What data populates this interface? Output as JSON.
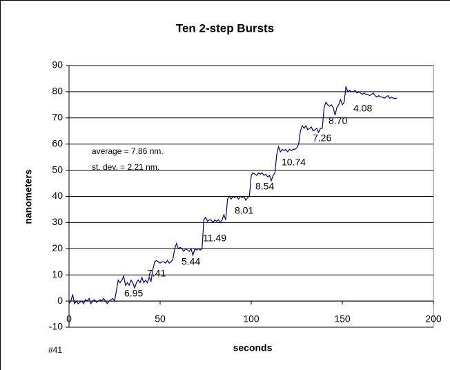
{
  "chart_data": {
    "type": "line",
    "title": "Ten 2-step Bursts",
    "x_label": "seconds",
    "y_label": "nanometers",
    "note": "#41",
    "annotations": [
      "average = 7.86 nm.",
      "st. dev. = 2.21 nm.",
      "6.95",
      "7.41",
      "5.44",
      "11.49",
      "8.01",
      "8.54",
      "10.74",
      "7.26",
      "8.70",
      "4.08"
    ],
    "xlim": [
      0,
      200
    ],
    "xticks": [
      0,
      50,
      100,
      150,
      200
    ],
    "ylim": [
      -10,
      90
    ],
    "yticks": [
      -10,
      0,
      10,
      20,
      30,
      40,
      50,
      60,
      70,
      80,
      90
    ],
    "grid": true,
    "series": [
      {
        "color": "#000080",
        "x": [
          0,
          1,
          2,
          3,
          4,
          5,
          6,
          7,
          8,
          9,
          10,
          11,
          12,
          13,
          14,
          15,
          16,
          17,
          18,
          19,
          20,
          21,
          22,
          23,
          24,
          25,
          26,
          27,
          28,
          29,
          30,
          31,
          32,
          33,
          34,
          35,
          36,
          37,
          38,
          39,
          40,
          41,
          42,
          43,
          44,
          45,
          46,
          47,
          48,
          49,
          50,
          51,
          52,
          53,
          54,
          55,
          56,
          57,
          58,
          59,
          60,
          61,
          62,
          63,
          64,
          65,
          66,
          67,
          68,
          69,
          70,
          71,
          72,
          73,
          74,
          75,
          76,
          77,
          78,
          79,
          80,
          81,
          82,
          83,
          84,
          85,
          86,
          87,
          88,
          89,
          90,
          91,
          92,
          93,
          94,
          95,
          96,
          97,
          98,
          99,
          100,
          101,
          102,
          103,
          104,
          105,
          106,
          107,
          108,
          109,
          110,
          111,
          112,
          113,
          114,
          115,
          116,
          117,
          118,
          119,
          120,
          121,
          122,
          123,
          124,
          125,
          126,
          127,
          128,
          129,
          130,
          131,
          132,
          133,
          134,
          135,
          136,
          137,
          138,
          139,
          140,
          141,
          142,
          143,
          144,
          145,
          146,
          147,
          148,
          149,
          150,
          151,
          152,
          153,
          154,
          155,
          156,
          157,
          158,
          159,
          160,
          161,
          162,
          163,
          164,
          165,
          166,
          167,
          168,
          169,
          170,
          171,
          172,
          173,
          174,
          175,
          176,
          177,
          178,
          179,
          180
        ],
        "values": [
          -1,
          0,
          2.5,
          -1,
          0,
          -1,
          -0.5,
          0,
          -1,
          0.5,
          0,
          1,
          -1,
          0,
          0.5,
          -0.5,
          0,
          0.5,
          0,
          1,
          0,
          -1,
          0,
          0.5,
          1,
          0,
          4,
          8,
          7,
          8,
          9.5,
          6,
          7,
          6,
          8,
          7,
          5,
          7,
          8,
          7,
          9,
          7,
          8,
          7,
          9,
          7.5,
          12,
          15,
          15.5,
          15,
          14.5,
          15,
          15,
          14.5,
          15.5,
          14.5,
          15,
          16,
          20,
          22,
          20,
          20.5,
          20,
          19,
          20,
          19.5,
          19,
          20,
          17.5,
          20,
          19.5,
          20,
          19.5,
          20,
          31,
          32,
          30.5,
          31,
          31,
          30,
          31,
          30.5,
          31,
          30,
          31,
          33,
          31,
          39,
          40,
          39,
          40,
          39.5,
          40,
          39,
          40,
          39.5,
          40,
          38.5,
          39.5,
          40,
          48,
          49,
          48.5,
          48,
          49,
          48.5,
          49,
          48,
          48.5,
          47.5,
          48,
          46,
          48,
          49,
          56,
          59,
          57,
          58,
          57.5,
          58,
          57,
          58,
          57.5,
          58,
          58,
          58.5,
          60,
          65,
          67,
          66,
          67,
          65.5,
          66,
          66.5,
          65,
          65.5,
          66,
          64.5,
          66,
          66,
          74,
          76,
          75,
          74.5,
          75,
          74,
          71,
          74,
          75,
          77,
          75,
          76,
          82,
          80,
          80.5,
          80,
          80,
          80.5,
          79.5,
          80,
          79.5,
          79,
          79.5,
          79,
          79,
          78.5,
          79,
          79.5,
          78.5,
          78,
          78.5,
          78,
          78,
          77.5,
          78,
          78.5,
          77.5,
          78,
          77.5,
          77.5,
          77.5
        ]
      }
    ]
  }
}
